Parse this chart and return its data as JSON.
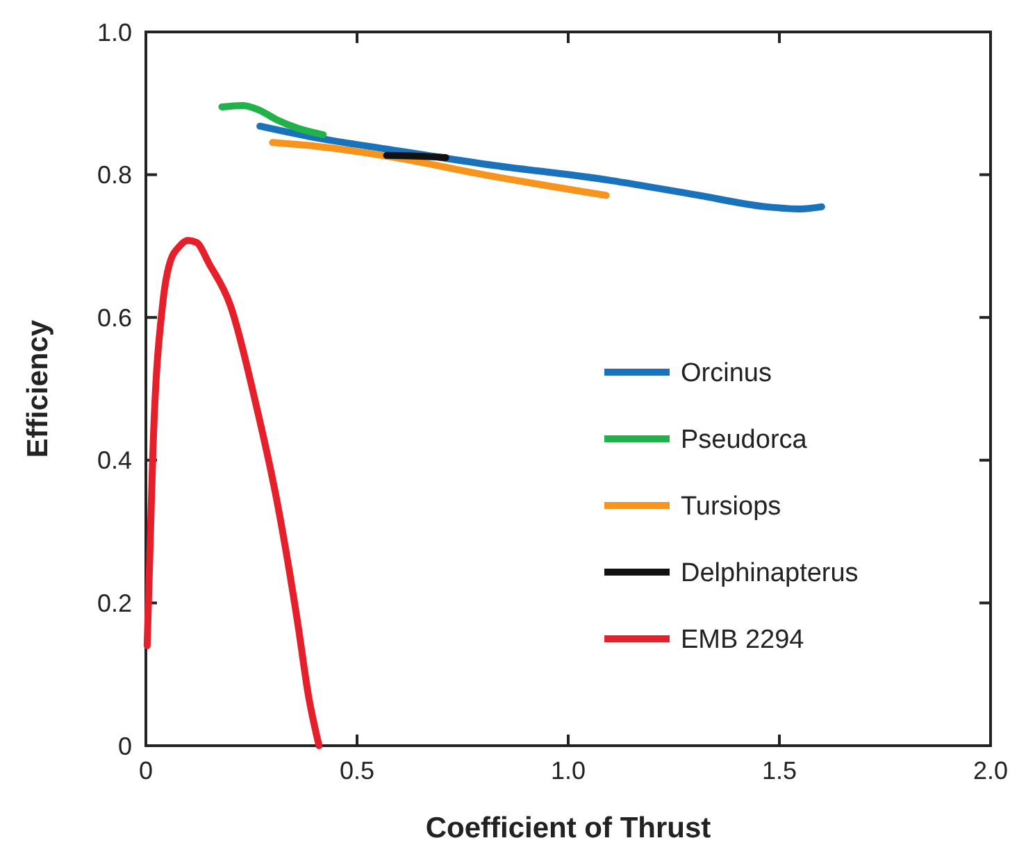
{
  "chart_data": {
    "type": "line",
    "xlabel": "Coefficient of Thrust",
    "ylabel": "Efficiency",
    "xlim": [
      0,
      2
    ],
    "ylim": [
      0,
      1
    ],
    "xticks": [
      0,
      0.5,
      {
        "value": 1,
        "label": "1.0"
      },
      1.5,
      {
        "value": 2,
        "label": "2.0"
      }
    ],
    "yticks": [
      0,
      0.2,
      0.4,
      0.6,
      0.8,
      {
        "value": 1,
        "label": "1.0"
      }
    ],
    "grid": false,
    "legend": "right",
    "marker": "none",
    "line_style": "solid",
    "series": [
      {
        "name": "Orcinus",
        "color": "#1a72bb",
        "x": [
          0.27,
          0.4,
          0.58,
          0.8,
          1.1,
          1.3,
          1.47,
          1.55,
          1.6
        ],
        "values": [
          0.868,
          0.852,
          0.835,
          0.815,
          0.792,
          0.772,
          0.755,
          0.752,
          0.755
        ]
      },
      {
        "name": "Pseudorca",
        "color": "#22b24c",
        "x": [
          0.18,
          0.23,
          0.27,
          0.31,
          0.36,
          0.42
        ],
        "values": [
          0.895,
          0.897,
          0.89,
          0.877,
          0.865,
          0.856
        ]
      },
      {
        "name": "Tursiops",
        "color": "#f7941d",
        "x": [
          0.3,
          0.4,
          0.58,
          0.8,
          1.09
        ],
        "values": [
          0.845,
          0.84,
          0.825,
          0.8,
          0.771
        ]
      },
      {
        "name": "Delphinapterus",
        "color": "#111111",
        "x": [
          0.57,
          0.64,
          0.71
        ],
        "values": [
          0.827,
          0.826,
          0.824
        ]
      },
      {
        "name": "EMB 2294",
        "color": "#e5202b",
        "x": [
          0.003,
          0.01,
          0.016,
          0.04,
          0.056,
          0.08,
          0.1,
          0.12,
          0.15,
          0.2,
          0.26,
          0.31,
          0.36,
          0.385,
          0.41
        ],
        "values": [
          0.14,
          0.28,
          0.4,
          0.62,
          0.675,
          0.7,
          0.708,
          0.705,
          0.675,
          0.617,
          0.48,
          0.344,
          0.17,
          0.07,
          0
        ]
      }
    ]
  }
}
